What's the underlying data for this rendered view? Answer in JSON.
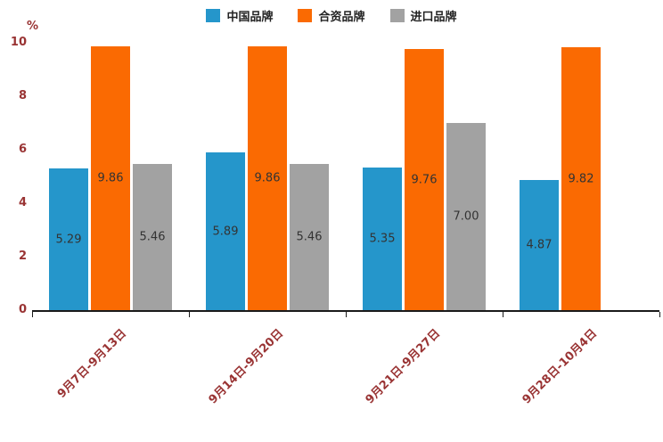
{
  "chart_data": {
    "type": "bar",
    "title": "",
    "xlabel": "",
    "ylabel": "%",
    "ylim": [
      0,
      10
    ],
    "yticks": [
      0,
      2,
      4,
      6,
      8,
      10
    ],
    "grid": false,
    "legend_position": "top",
    "value_label_decimals": 2,
    "label_color": "#333333",
    "axis_label_color": "#993333",
    "categories": [
      "9月7日-9月13日",
      "9月14日-9月20日",
      "9月21日-9月27日",
      "9月28日-10月4日"
    ],
    "series": [
      {
        "name": "中国品牌",
        "color": "#2596CB",
        "values": [
          5.29,
          5.89,
          5.35,
          4.87
        ]
      },
      {
        "name": "合资品牌",
        "color": "#FA6A02",
        "values": [
          9.86,
          9.86,
          9.76,
          9.82
        ]
      },
      {
        "name": "进口品牌",
        "color": "#A2A2A2",
        "values": [
          5.46,
          5.46,
          7.0,
          null
        ]
      }
    ]
  }
}
